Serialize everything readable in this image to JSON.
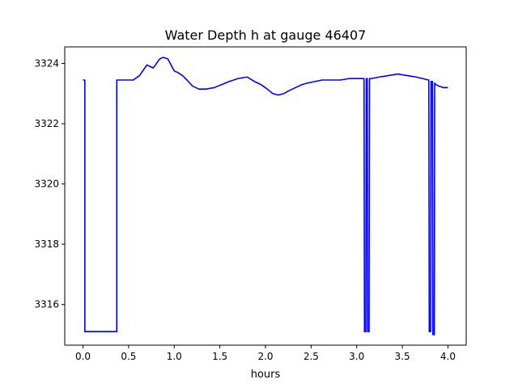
{
  "chart_data": {
    "type": "line",
    "title": "Water Depth h at gauge 46407",
    "xlabel": "hours",
    "ylabel": "",
    "xlim": [
      -0.2,
      4.2
    ],
    "ylim": [
      3314.65,
      3324.55
    ],
    "xticks": [
      0.0,
      0.5,
      1.0,
      1.5,
      2.0,
      2.5,
      3.0,
      3.5,
      4.0
    ],
    "xtick_labels": [
      "0.0",
      "0.5",
      "1.0",
      "1.5",
      "2.0",
      "2.5",
      "3.0",
      "3.5",
      "4.0"
    ],
    "yticks": [
      3316,
      3318,
      3320,
      3322,
      3324
    ],
    "ytick_labels": [
      "3316",
      "3318",
      "3320",
      "3322",
      "3324"
    ],
    "grid": false,
    "series": [
      {
        "color": "#0000ff",
        "x": [
          0.0,
          0.02,
          0.02,
          0.37,
          0.37,
          0.45,
          0.55,
          0.62,
          0.7,
          0.77,
          0.84,
          0.88,
          0.93,
          1.0,
          1.04,
          1.09,
          1.14,
          1.2,
          1.27,
          1.35,
          1.44,
          1.52,
          1.6,
          1.7,
          1.8,
          1.88,
          1.95,
          2.02,
          2.08,
          2.14,
          2.2,
          2.26,
          2.33,
          2.4,
          2.46,
          2.54,
          2.62,
          2.72,
          2.82,
          2.92,
          3.02,
          3.08,
          3.085,
          3.1,
          3.105,
          3.115,
          3.12,
          3.135,
          3.14,
          3.15,
          3.155,
          3.165,
          3.25,
          3.35,
          3.45,
          3.55,
          3.65,
          3.72,
          3.79,
          3.795,
          3.81,
          3.815,
          3.83,
          3.835,
          3.85,
          3.855,
          3.865,
          3.9,
          3.95,
          4.0
        ],
        "y": [
          3323.45,
          3323.45,
          3315.1,
          3315.1,
          3323.45,
          3323.45,
          3323.45,
          3323.6,
          3323.95,
          3323.85,
          3324.15,
          3324.2,
          3324.15,
          3323.75,
          3323.7,
          3323.6,
          3323.45,
          3323.25,
          3323.15,
          3323.15,
          3323.2,
          3323.3,
          3323.4,
          3323.5,
          3323.55,
          3323.4,
          3323.3,
          3323.15,
          3323.0,
          3322.95,
          3323.0,
          3323.1,
          3323.2,
          3323.3,
          3323.35,
          3323.4,
          3323.45,
          3323.45,
          3323.45,
          3323.5,
          3323.5,
          3323.5,
          3315.1,
          3315.1,
          3323.5,
          3323.5,
          3315.1,
          3315.1,
          3323.5,
          3323.5,
          3323.5,
          3323.5,
          3323.55,
          3323.6,
          3323.65,
          3323.6,
          3323.55,
          3323.5,
          3323.45,
          3315.1,
          3315.1,
          3323.4,
          3323.4,
          3315.0,
          3315.0,
          3323.35,
          3323.3,
          3323.25,
          3323.2,
          3323.2
        ]
      }
    ]
  }
}
